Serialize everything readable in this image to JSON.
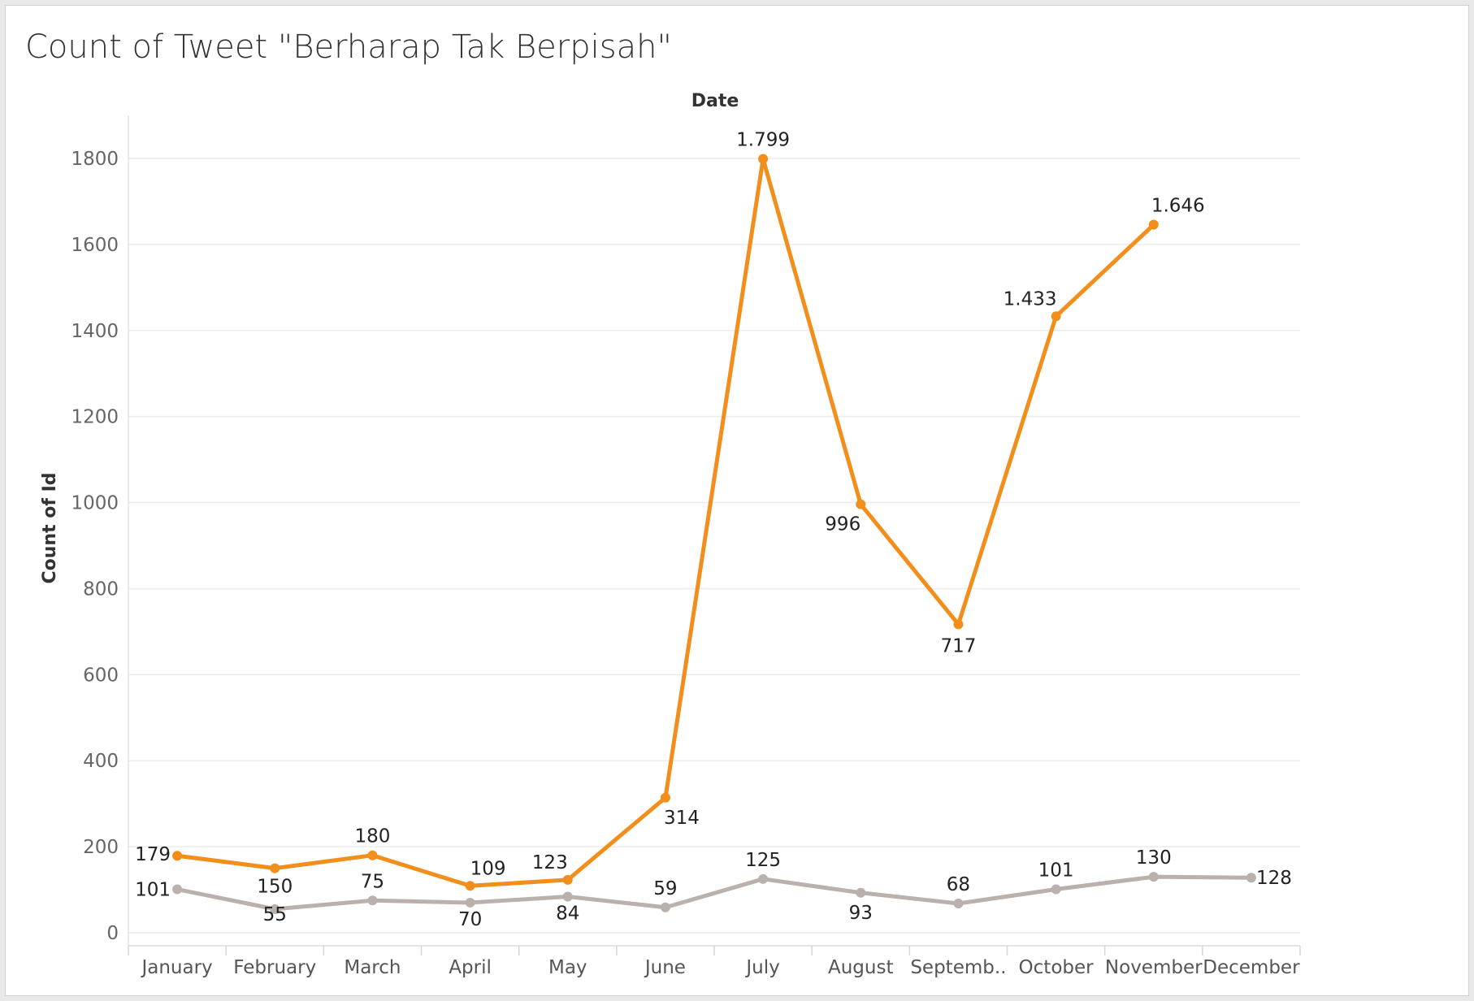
{
  "chart_data": {
    "type": "line",
    "title": "Count of Tweet \"Berharap Tak Berpisah\"",
    "xlabel": "Date",
    "ylabel": "Count of Id",
    "ylim": [
      0,
      1900
    ],
    "yticks": [
      0,
      200,
      400,
      600,
      800,
      1000,
      1200,
      1400,
      1600,
      1800
    ],
    "categories": [
      "January",
      "February",
      "March",
      "April",
      "May",
      "June",
      "July",
      "August",
      "Septemb..",
      "October",
      "November",
      "December"
    ],
    "grid": true,
    "series": [
      {
        "name": "Series 1",
        "color": "#f28e1c",
        "values": [
          179,
          150,
          180,
          109,
          123,
          314,
          1799,
          996,
          717,
          1433,
          1646,
          null
        ],
        "labels": [
          "179",
          "150",
          "180",
          "109",
          "123",
          "314",
          "1.799",
          "996",
          "717",
          "1.433",
          "1.646",
          ""
        ]
      },
      {
        "name": "Series 2",
        "color": "#bab0ac",
        "values": [
          101,
          55,
          75,
          70,
          84,
          59,
          125,
          93,
          68,
          101,
          130,
          128
        ],
        "labels": [
          "101",
          "55",
          "75",
          "70",
          "84",
          "59",
          "125",
          "93",
          "68",
          "101",
          "130",
          "128"
        ]
      }
    ]
  }
}
